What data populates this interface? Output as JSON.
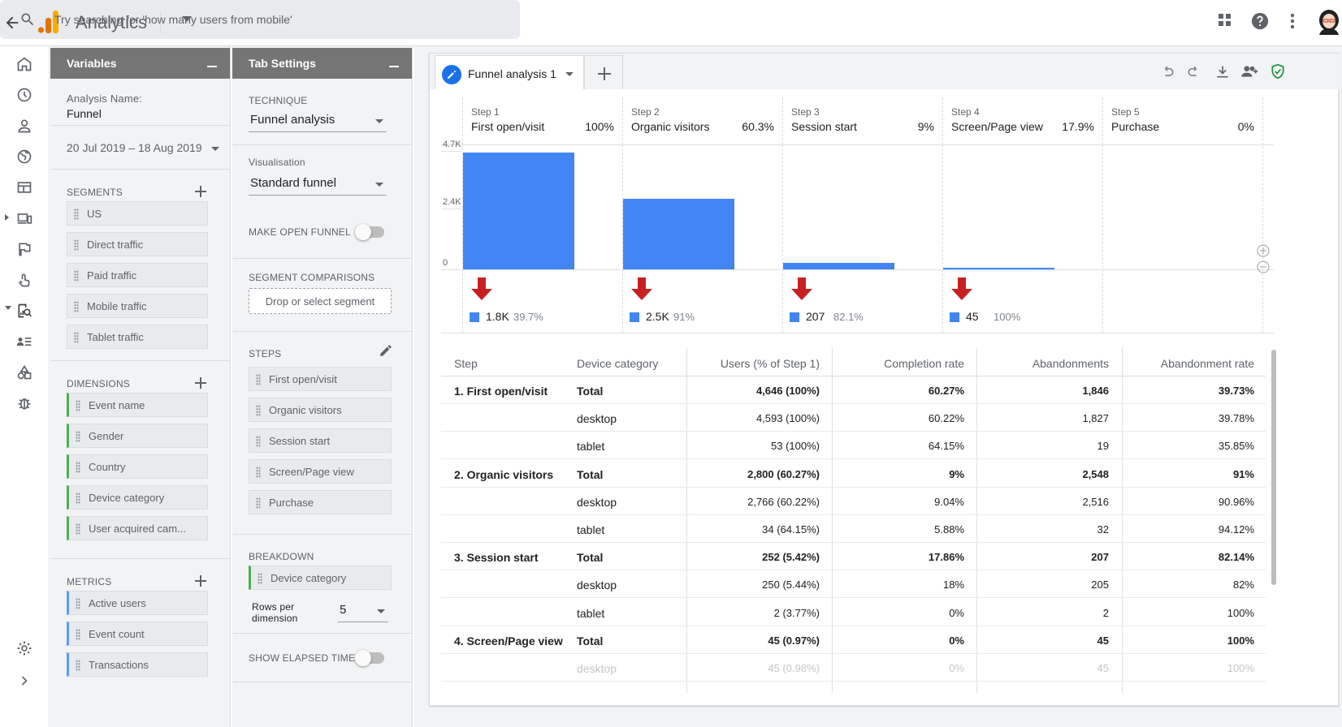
{
  "app": {
    "title": "Analytics",
    "search_placeholder": "Try searching for 'how many users from mobile'"
  },
  "variables": {
    "header": "Variables",
    "analysis_name_label": "Analysis Name:",
    "analysis_name": "Funnel",
    "date_range": "20 Jul 2019 – 18 Aug 2019",
    "segments_label": "SEGMENTS",
    "segments": [
      "US",
      "Direct traffic",
      "Paid traffic",
      "Mobile traffic",
      "Tablet traffic"
    ],
    "dimensions_label": "DIMENSIONS",
    "dimensions": [
      "Event name",
      "Gender",
      "Country",
      "Device category",
      "User acquired cam..."
    ],
    "metrics_label": "METRICS",
    "metrics": [
      "Active users",
      "Event count",
      "Transactions"
    ]
  },
  "tab_settings": {
    "header": "Tab Settings",
    "technique_label": "TECHNIQUE",
    "technique": "Funnel analysis",
    "visualisation_label": "Visualisation",
    "visualisation": "Standard funnel",
    "open_funnel_label": "MAKE OPEN FUNNEL",
    "open_funnel_on": false,
    "segment_comparisons_label": "SEGMENT COMPARISONS",
    "segment_drop": "Drop or select segment",
    "steps_label": "STEPS",
    "steps": [
      "First open/visit",
      "Organic visitors",
      "Session start",
      "Screen/Page view",
      "Purchase"
    ],
    "breakdown_label": "BREAKDOWN",
    "breakdown": "Device category",
    "rows_label_1": "Rows per",
    "rows_label_2": "dimension",
    "rows_value": "5",
    "elapsed_label": "SHOW ELAPSED TIME",
    "elapsed_on": false
  },
  "canvas": {
    "tab_name": "Funnel analysis 1"
  },
  "chart_data": {
    "type": "bar",
    "categories": [
      "First open/visit",
      "Organic visitors",
      "Session start",
      "Screen/Page view",
      "Purchase"
    ],
    "step_numbers": [
      "Step 1",
      "Step 2",
      "Step 3",
      "Step 4",
      "Step 5"
    ],
    "step_percents": [
      "100%",
      "60.3%",
      "9%",
      "17.9%",
      "0%"
    ],
    "values": [
      4646,
      2800,
      252,
      45,
      0
    ],
    "ylim": [
      0,
      4700
    ],
    "yticks": [
      {
        "v": 0,
        "label": "0"
      },
      {
        "v": 2400,
        "label": "2.4K"
      },
      {
        "v": 4700,
        "label": "4.7K"
      }
    ],
    "abandonments": [
      {
        "value": "1.8K",
        "pct": "39.7%"
      },
      {
        "value": "2.5K",
        "pct": "91%"
      },
      {
        "value": "207",
        "pct": "82.1%"
      },
      {
        "value": "45",
        "pct": "100%"
      }
    ],
    "bar_color": "#4285f4",
    "arrow_color": "#c5221f"
  },
  "table": {
    "headers": [
      "Step",
      "Device category",
      "Users (% of Step 1)",
      "Completion rate",
      "Abandonments",
      "Abandonment rate"
    ],
    "rows": [
      [
        "1. First open/visit",
        "Total",
        "4,646 (100%)",
        "60.27%",
        "1,846",
        "39.73%"
      ],
      [
        "",
        "desktop",
        "4,593 (100%)",
        "60.22%",
        "1,827",
        "39.78%"
      ],
      [
        "",
        "tablet",
        "53 (100%)",
        "64.15%",
        "19",
        "35.85%"
      ],
      [
        "2. Organic visitors",
        "Total",
        "2,800 (60.27%)",
        "9%",
        "2,548",
        "91%"
      ],
      [
        "",
        "desktop",
        "2,766 (60.22%)",
        "9.04%",
        "2,516",
        "90.96%"
      ],
      [
        "",
        "tablet",
        "34 (64.15%)",
        "5.88%",
        "32",
        "94.12%"
      ],
      [
        "3. Session start",
        "Total",
        "252 (5.42%)",
        "17.86%",
        "207",
        "82.14%"
      ],
      [
        "",
        "desktop",
        "250 (5.44%)",
        "18%",
        "205",
        "82%"
      ],
      [
        "",
        "tablet",
        "2 (3.77%)",
        "0%",
        "2",
        "100%"
      ],
      [
        "4. Screen/Page view",
        "Total",
        "45 (0.97%)",
        "0%",
        "45",
        "100%"
      ],
      [
        "",
        "desktop",
        "45 (0.98%)",
        "0%",
        "45",
        "100%"
      ]
    ]
  }
}
